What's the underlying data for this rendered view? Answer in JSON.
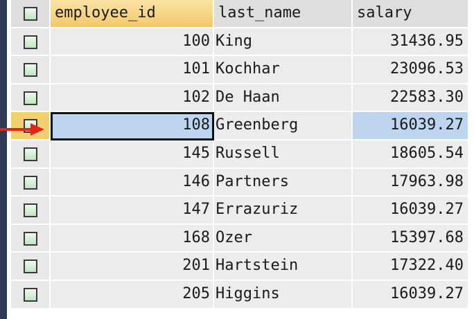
{
  "grid": {
    "columns": [
      "employee_id",
      "last_name",
      "salary"
    ],
    "rows": [
      {
        "employee_id": "100",
        "last_name": "King",
        "salary": "31436.95"
      },
      {
        "employee_id": "101",
        "last_name": "Kochhar",
        "salary": "23096.53"
      },
      {
        "employee_id": "102",
        "last_name": "De Haan",
        "salary": "22583.30"
      },
      {
        "employee_id": "108",
        "last_name": "Greenberg",
        "salary": "16039.27"
      },
      {
        "employee_id": "145",
        "last_name": "Russell",
        "salary": "18605.54"
      },
      {
        "employee_id": "146",
        "last_name": "Partners",
        "salary": "17963.98"
      },
      {
        "employee_id": "147",
        "last_name": "Errazuriz",
        "salary": "16039.27"
      },
      {
        "employee_id": "168",
        "last_name": "Ozer",
        "salary": "15397.68"
      },
      {
        "employee_id": "201",
        "last_name": "Hartstein",
        "salary": "17322.40"
      },
      {
        "employee_id": "205",
        "last_name": "Higgins",
        "salary": "16039.27"
      }
    ],
    "selected_row": 3
  },
  "colors": {
    "selected_cell": "#bdd5ef",
    "header_active": "#f4c86a",
    "arrow": "#e0251b",
    "left_bar": "#2f3b56"
  }
}
